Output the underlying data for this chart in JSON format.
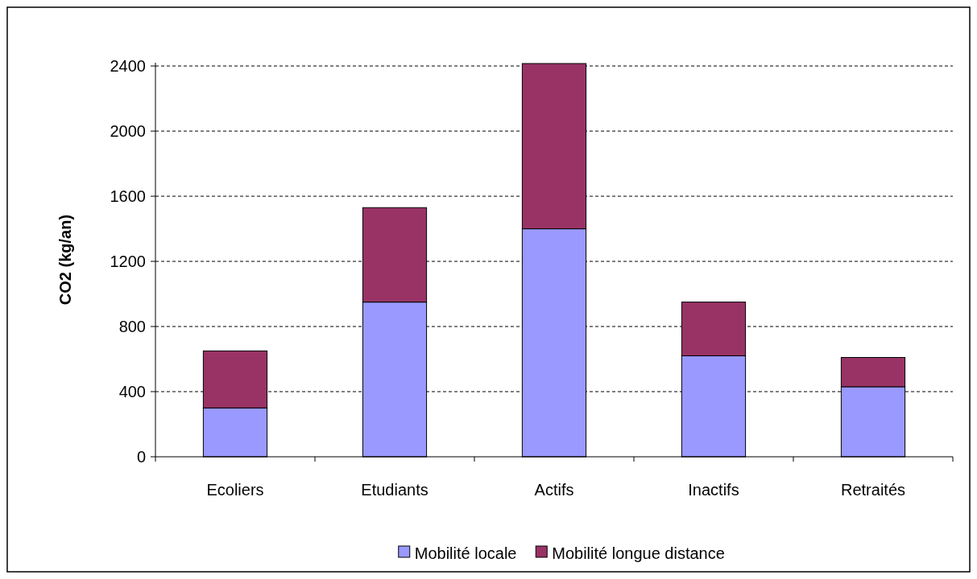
{
  "chart_data": {
    "type": "bar",
    "stacked": true,
    "ylabel": "CO2 (kg/an)",
    "categories": [
      "Ecoliers",
      "Etudiants",
      "Actifs",
      "Inactifs",
      "Retraités"
    ],
    "series": [
      {
        "name": "Mobilité locale",
        "color": "#9999ff",
        "values": [
          300,
          950,
          1400,
          620,
          430
        ]
      },
      {
        "name": "Mobilité longue distance",
        "color": "#993366",
        "values": [
          350,
          580,
          1015,
          330,
          180
        ]
      }
    ],
    "ylim": [
      0,
      2420
    ],
    "yticks": [
      0,
      400,
      800,
      1200,
      1600,
      2000,
      2400
    ],
    "grid": "y",
    "legend": "bottom"
  }
}
